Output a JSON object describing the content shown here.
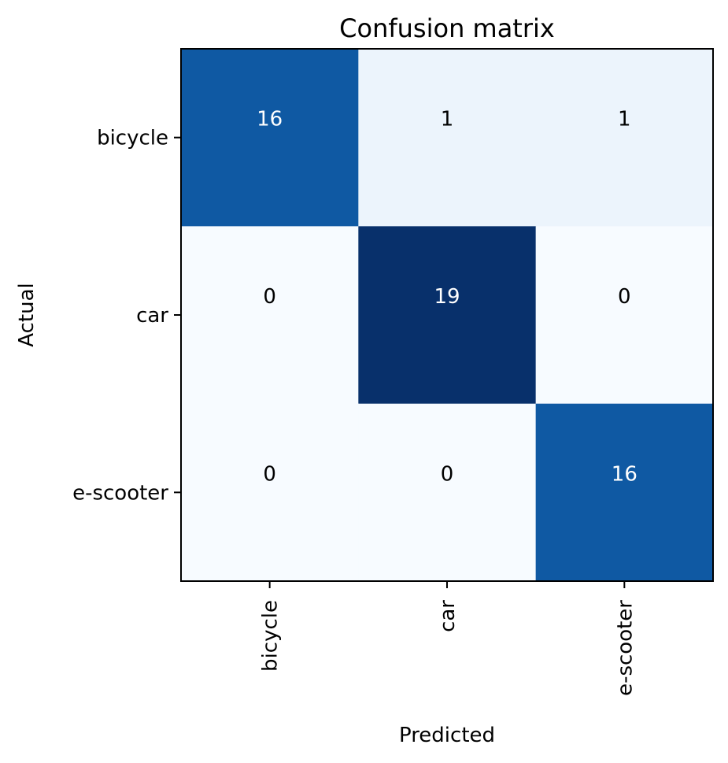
{
  "chart_data": {
    "type": "heatmap",
    "title": "Confusion matrix",
    "xlabel": "Predicted",
    "ylabel": "Actual",
    "x_categories": [
      "bicycle",
      "car",
      "e-scooter"
    ],
    "y_categories": [
      "bicycle",
      "car",
      "e-scooter"
    ],
    "values": [
      [
        16,
        1,
        1
      ],
      [
        0,
        19,
        0
      ],
      [
        0,
        0,
        16
      ]
    ],
    "colormap": "Blues",
    "grid": false
  }
}
